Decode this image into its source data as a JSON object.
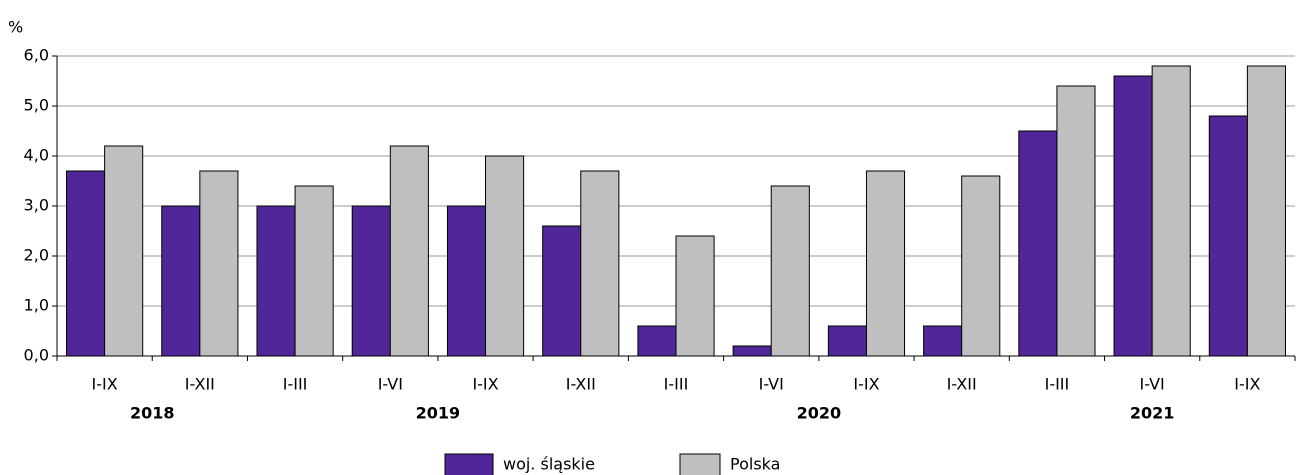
{
  "chart_data": {
    "type": "bar",
    "y_unit": "%",
    "categories": [
      "I-IX",
      "I-XII",
      "I-III",
      "I-VI",
      "I-IX",
      "I-XII",
      "I-III",
      "I-VI",
      "I-IX",
      "I-XII",
      "I-III",
      "I-VI",
      "I-IX"
    ],
    "years": [
      "2018",
      "2018",
      "2019",
      "2019",
      "2019",
      "2019",
      "2020",
      "2020",
      "2020",
      "2020",
      "2021",
      "2021",
      "2021"
    ],
    "series": [
      {
        "name": "woj. śląskie",
        "color": "#512698",
        "values": [
          3.7,
          3.0,
          3.0,
          3.0,
          3.0,
          2.6,
          0.6,
          0.2,
          0.6,
          0.6,
          4.5,
          5.6,
          4.8
        ]
      },
      {
        "name": "Polska",
        "color": "#bfbfbf",
        "values": [
          4.2,
          3.7,
          3.4,
          4.2,
          4.0,
          3.7,
          2.4,
          3.4,
          3.7,
          3.6,
          5.4,
          5.8,
          5.8
        ]
      }
    ],
    "ylim": [
      0,
      6
    ],
    "yticks": [
      {
        "value": 0,
        "label": "0,0"
      },
      {
        "value": 1,
        "label": "1,0"
      },
      {
        "value": 2,
        "label": "2,0"
      },
      {
        "value": 3,
        "label": "3,0"
      },
      {
        "value": 4,
        "label": "4,0"
      },
      {
        "value": 5,
        "label": "5,0"
      },
      {
        "value": 6,
        "label": "6,0"
      }
    ],
    "grid": true
  }
}
